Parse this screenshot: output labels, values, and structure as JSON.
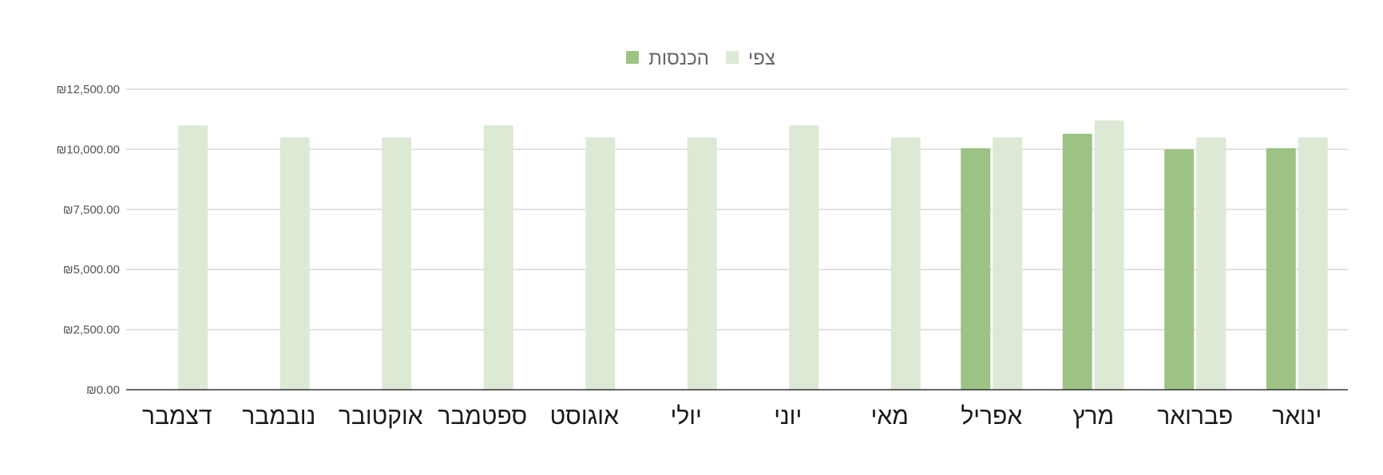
{
  "chart_data": {
    "type": "bar",
    "categories": [
      "ינואר",
      "פברואר",
      "מרץ",
      "אפריל",
      "מאי",
      "יוני",
      "יולי",
      "אוגוסט",
      "ספטמבר",
      "אוקטובר",
      "נובמבר",
      "דצמבר"
    ],
    "category_order": "right-to-left",
    "series": [
      {
        "name": "צפי",
        "color": "#dce9d5",
        "values": [
          10500,
          10500,
          11200,
          10500,
          10500,
          11000,
          10500,
          10500,
          11000,
          10500,
          10500,
          11000
        ]
      },
      {
        "name": "הכנסות",
        "color": "#9dc384",
        "values": [
          10050,
          10000,
          10650,
          10050,
          null,
          null,
          null,
          null,
          null,
          null,
          null,
          null
        ]
      }
    ],
    "ylim": [
      0,
      12500
    ],
    "yticks": [
      0,
      2500,
      5000,
      7500,
      10000,
      12500
    ],
    "ytick_labels": [
      "₪0.00",
      "₪2,500.00",
      "₪5,000.00",
      "₪7,500.00",
      "₪10,000.00",
      "₪12,500.00"
    ],
    "grid": true,
    "legend_position": "top-center",
    "title": "",
    "xlabel": "",
    "ylabel": ""
  }
}
